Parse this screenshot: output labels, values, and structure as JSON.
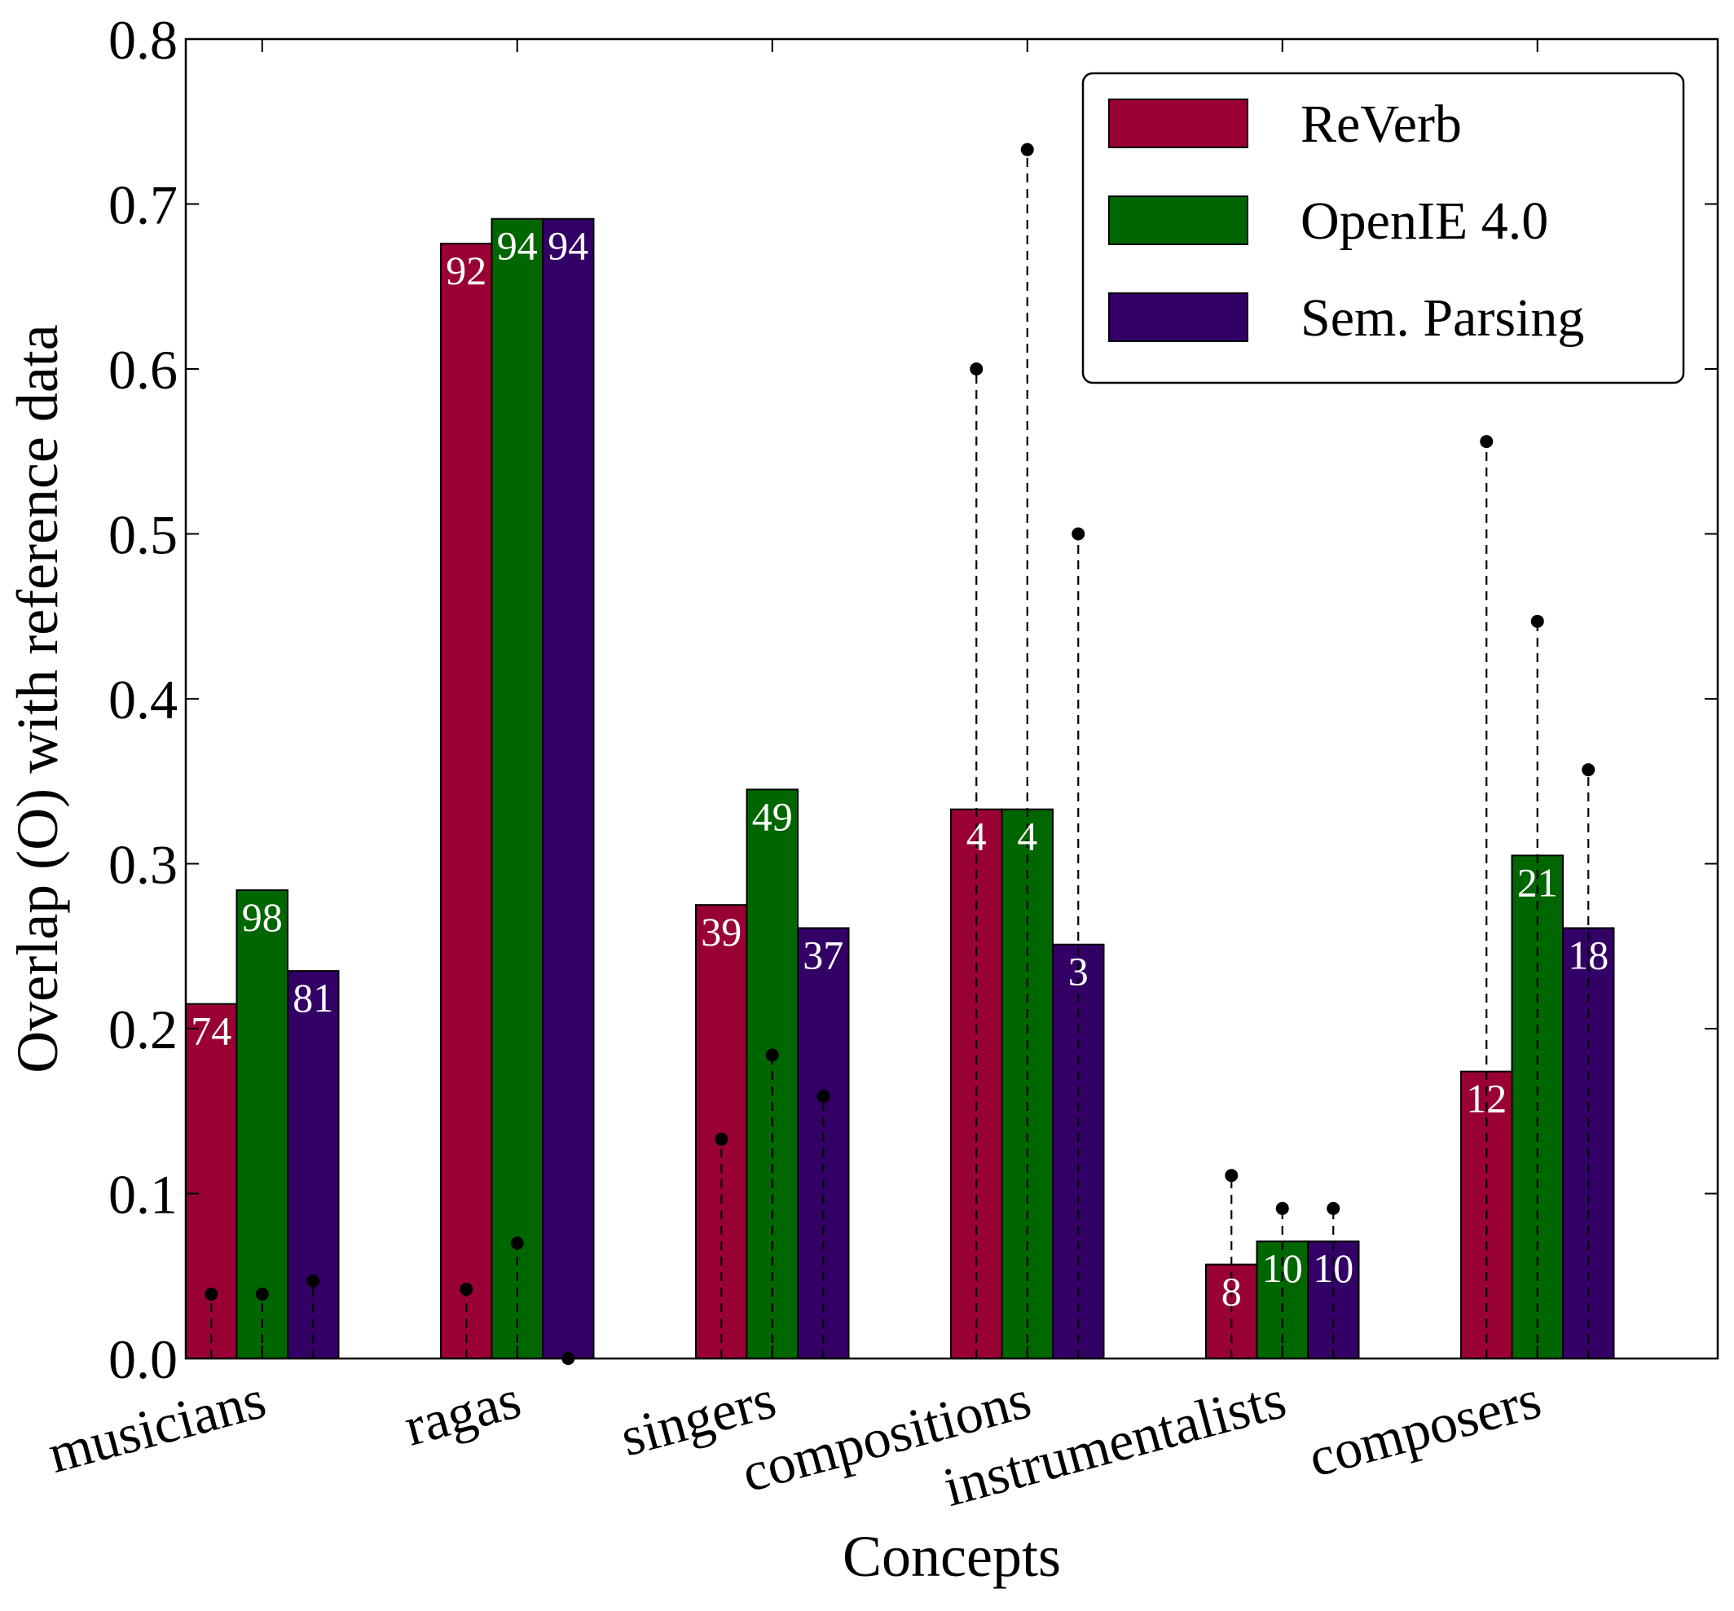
{
  "chart_data": {
    "type": "bar",
    "categories": [
      "musicians",
      "ragas",
      "singers",
      "compositions",
      "instrumentalists",
      "composers"
    ],
    "xlabel": "Concepts",
    "ylabel": "Overlap (O) with reference data",
    "ylim": [
      0.0,
      0.8
    ],
    "yticks": [
      "0.0",
      "0.1",
      "0.2",
      "0.3",
      "0.4",
      "0.5",
      "0.6",
      "0.7",
      "0.8"
    ],
    "grid": false,
    "legend_placement": "top-right",
    "series": [
      {
        "name": "ReVerb",
        "color": "#990033",
        "values": [
          0.215,
          0.676,
          0.275,
          0.333,
          0.057,
          0.174
        ],
        "bar_labels": [
          "74",
          "92",
          "39",
          "4",
          "8",
          "12"
        ],
        "markers": [
          0.039,
          0.042,
          0.133,
          0.6,
          0.111,
          0.556
        ]
      },
      {
        "name": "OpenIE 4.0",
        "color": "#006600",
        "values": [
          0.284,
          0.691,
          0.345,
          0.333,
          0.071,
          0.305
        ],
        "bar_labels": [
          "98",
          "94",
          "49",
          "4",
          "10",
          "21"
        ],
        "markers": [
          0.039,
          0.07,
          0.184,
          0.733,
          0.091,
          0.447
        ]
      },
      {
        "name": "Sem. Parsing",
        "color": "#330066",
        "values": [
          0.235,
          0.691,
          0.261,
          0.251,
          0.071,
          0.261
        ],
        "bar_labels": [
          "81",
          "94",
          "37",
          "3",
          "10",
          "18"
        ],
        "markers": [
          0.047,
          0.0,
          0.159,
          0.5,
          0.091,
          0.357
        ]
      }
    ]
  }
}
